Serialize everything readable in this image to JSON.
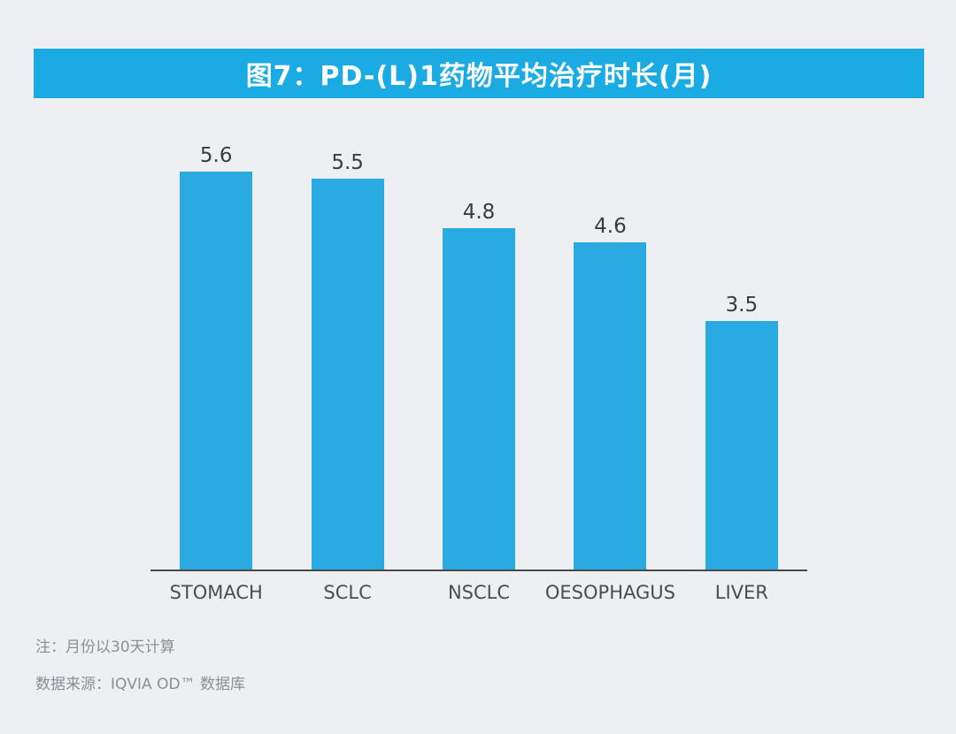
{
  "header": {
    "title": "图7：PD-(L)1药物平均治疗时长(月)",
    "banner_color": "#1aabe3"
  },
  "chart_data": {
    "type": "bar",
    "title": "图7：PD-(L)1药物平均治疗时长(月)",
    "categories": [
      "STOMACH",
      "SCLC",
      "NSCLC",
      "OESOPHAGUS",
      "LIVER"
    ],
    "values": [
      5.6,
      5.5,
      4.8,
      4.6,
      3.5
    ],
    "value_labels": [
      "5.6",
      "5.5",
      "4.8",
      "4.6",
      "3.5"
    ],
    "xlabel": "",
    "ylabel": "",
    "ylim": [
      0,
      5.6
    ],
    "grid": false,
    "legend": false,
    "bar_color": "#29ABE2",
    "axis_color": "#4a4a4a"
  },
  "notes": {
    "line1": "注：月份以30天计算",
    "line2": "数据来源：IQVIA OD™ 数据库"
  }
}
